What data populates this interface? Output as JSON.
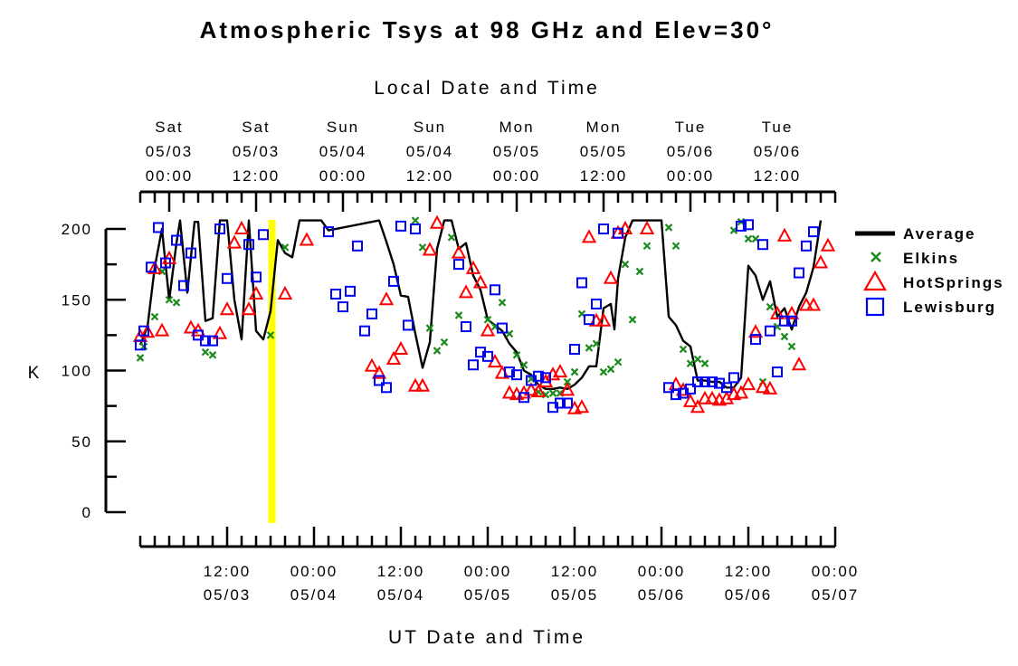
{
  "chart_data": {
    "type": "scatter",
    "title": "Atmospheric Tsys at 98 GHz and Elev=30°",
    "top_axis_label": "Local Date and Time",
    "xlabel": "UT Date and Time",
    "ylabel": "K",
    "ylim": [
      0,
      200
    ],
    "y_ticks": [
      0,
      50,
      100,
      150,
      200
    ],
    "x_range_ut_hours_from_0503_0000": [
      0,
      96
    ],
    "top_ticks": [
      {
        "day": "Sat",
        "date": "05/03",
        "time": "00:00",
        "ut_hours": 4
      },
      {
        "day": "Sat",
        "date": "05/03",
        "time": "12:00",
        "ut_hours": 16
      },
      {
        "day": "Sun",
        "date": "05/04",
        "time": "00:00",
        "ut_hours": 28
      },
      {
        "day": "Sun",
        "date": "05/04",
        "time": "12:00",
        "ut_hours": 40
      },
      {
        "day": "Mon",
        "date": "05/05",
        "time": "00:00",
        "ut_hours": 52
      },
      {
        "day": "Mon",
        "date": "05/05",
        "time": "12:00",
        "ut_hours": 64
      },
      {
        "day": "Tue",
        "date": "05/06",
        "time": "00:00",
        "ut_hours": 76
      },
      {
        "day": "Tue",
        "date": "05/06",
        "time": "12:00",
        "ut_hours": 88
      }
    ],
    "bottom_ticks": [
      {
        "time": "12:00",
        "date": "05/03",
        "ut_hours": 12
      },
      {
        "time": "00:00",
        "date": "05/04",
        "ut_hours": 24
      },
      {
        "time": "12:00",
        "date": "05/04",
        "ut_hours": 36
      },
      {
        "time": "00:00",
        "date": "05/05",
        "ut_hours": 48
      },
      {
        "time": "12:00",
        "date": "05/05",
        "ut_hours": 60
      },
      {
        "time": "00:00",
        "date": "05/06",
        "ut_hours": 72
      },
      {
        "time": "12:00",
        "date": "05/06",
        "ut_hours": 84
      },
      {
        "time": "00:00",
        "date": "05/07",
        "ut_hours": 96
      }
    ],
    "now_marker_ut_hours": 18.2,
    "colors": {
      "average": "#000000",
      "elkins": "#1a8a1a",
      "hotsprings": "#ff0000",
      "lewisburg": "#0000ff",
      "now_marker": "#ffff00"
    },
    "series": [
      {
        "name": "Average",
        "marker": "line",
        "points": [
          [
            0,
            118
          ],
          [
            1,
            131
          ],
          [
            2,
            173
          ],
          [
            3,
            200
          ],
          [
            4,
            150
          ],
          [
            5,
            190
          ],
          [
            5.5,
            206
          ],
          [
            6.5,
            155
          ],
          [
            7.5,
            205
          ],
          [
            8,
            205
          ],
          [
            9,
            135
          ],
          [
            10,
            137
          ],
          [
            11,
            206
          ],
          [
            12,
            206
          ],
          [
            13,
            150
          ],
          [
            14,
            122
          ],
          [
            15,
            206
          ],
          [
            16,
            128
          ],
          [
            17,
            122
          ],
          [
            18,
            142
          ],
          [
            19,
            192
          ],
          [
            20,
            183
          ],
          [
            21,
            180
          ],
          [
            22,
            206
          ],
          [
            23,
            206
          ],
          [
            25,
            206
          ],
          [
            26,
            199
          ],
          [
            33,
            206
          ],
          [
            34,
            191
          ],
          [
            35,
            175
          ],
          [
            36,
            153
          ],
          [
            37,
            152
          ],
          [
            38,
            126
          ],
          [
            39,
            102
          ],
          [
            40,
            120
          ],
          [
            41,
            186
          ],
          [
            42,
            206
          ],
          [
            43,
            206
          ],
          [
            44,
            186
          ],
          [
            45,
            190
          ],
          [
            46,
            167
          ],
          [
            47,
            157
          ],
          [
            48,
            136
          ],
          [
            49,
            132
          ],
          [
            50,
            128
          ],
          [
            51,
            119
          ],
          [
            52,
            113
          ],
          [
            53,
            100
          ],
          [
            54,
            97
          ],
          [
            55,
            90
          ],
          [
            56,
            87
          ],
          [
            57,
            87
          ],
          [
            58,
            88
          ],
          [
            59,
            87
          ],
          [
            60,
            90
          ],
          [
            61,
            95
          ],
          [
            62,
            103
          ],
          [
            63,
            103
          ],
          [
            64,
            144
          ],
          [
            65,
            147
          ],
          [
            65.5,
            129
          ],
          [
            66,
            165
          ],
          [
            67,
            194
          ],
          [
            68,
            206
          ],
          [
            72,
            206
          ],
          [
            73,
            138
          ],
          [
            74,
            132
          ],
          [
            75,
            121
          ],
          [
            76,
            117
          ],
          [
            77,
            93
          ],
          [
            78,
            93
          ],
          [
            79,
            92
          ],
          [
            80,
            92
          ],
          [
            81,
            88
          ],
          [
            82,
            88
          ],
          [
            83,
            95
          ],
          [
            84,
            174
          ],
          [
            85,
            167
          ],
          [
            86,
            150
          ],
          [
            87,
            163
          ],
          [
            88,
            138
          ],
          [
            89,
            144
          ],
          [
            90,
            129
          ],
          [
            91,
            145
          ],
          [
            92,
            155
          ],
          [
            93,
            173
          ],
          [
            94,
            206
          ]
        ]
      },
      {
        "name": "Elkins",
        "marker": "x",
        "points": [
          [
            0,
            109
          ],
          [
            0.5,
            117
          ],
          [
            2,
            138
          ],
          [
            3,
            170
          ],
          [
            4,
            150
          ],
          [
            5,
            148
          ],
          [
            9,
            113
          ],
          [
            10,
            111
          ],
          [
            18,
            125
          ],
          [
            20,
            187
          ],
          [
            38,
            206
          ],
          [
            39,
            187
          ],
          [
            40,
            130
          ],
          [
            41,
            114
          ],
          [
            42,
            120
          ],
          [
            43,
            194
          ],
          [
            44,
            139
          ],
          [
            48,
            136
          ],
          [
            49,
            131
          ],
          [
            50,
            148
          ],
          [
            51,
            126
          ],
          [
            52,
            111
          ],
          [
            53,
            104
          ],
          [
            54,
            94
          ],
          [
            55,
            85
          ],
          [
            56,
            83
          ],
          [
            57,
            84
          ],
          [
            58,
            84
          ],
          [
            59,
            92
          ],
          [
            60,
            99
          ],
          [
            61,
            140
          ],
          [
            62,
            116
          ],
          [
            63,
            119
          ],
          [
            64,
            99
          ],
          [
            65,
            101
          ],
          [
            66,
            106
          ],
          [
            67,
            175
          ],
          [
            68,
            136
          ],
          [
            69,
            170
          ],
          [
            70,
            188
          ],
          [
            73,
            201
          ],
          [
            74,
            188
          ],
          [
            75,
            115
          ],
          [
            76,
            105
          ],
          [
            77,
            108
          ],
          [
            78,
            105
          ],
          [
            82,
            199
          ],
          [
            83,
            205
          ],
          [
            84,
            193
          ],
          [
            85,
            193
          ],
          [
            86,
            92
          ],
          [
            87,
            145
          ],
          [
            88,
            131
          ],
          [
            89,
            124
          ],
          [
            90,
            117
          ]
        ]
      },
      {
        "name": "HotSprings",
        "marker": "triangle",
        "points": [
          [
            0,
            124
          ],
          [
            1,
            127
          ],
          [
            2,
            172
          ],
          [
            3,
            128
          ],
          [
            4,
            179
          ],
          [
            7,
            130
          ],
          [
            8,
            128
          ],
          [
            11,
            126
          ],
          [
            12,
            143
          ],
          [
            13,
            190
          ],
          [
            14,
            200
          ],
          [
            15,
            143
          ],
          [
            16,
            154
          ],
          [
            20,
            154
          ],
          [
            23,
            192
          ],
          [
            32,
            103
          ],
          [
            33,
            98
          ],
          [
            34,
            150
          ],
          [
            35,
            108
          ],
          [
            36,
            115
          ],
          [
            38,
            89
          ],
          [
            39,
            89
          ],
          [
            40,
            185
          ],
          [
            41,
            204
          ],
          [
            44,
            183
          ],
          [
            45,
            155
          ],
          [
            46,
            172
          ],
          [
            47,
            162
          ],
          [
            48,
            128
          ],
          [
            49,
            106
          ],
          [
            50,
            98
          ],
          [
            51,
            84
          ],
          [
            52,
            83
          ],
          [
            53,
            84
          ],
          [
            54,
            86
          ],
          [
            55,
            85
          ],
          [
            56,
            92
          ],
          [
            57,
            97
          ],
          [
            58,
            99
          ],
          [
            59,
            86
          ],
          [
            60,
            73
          ],
          [
            61,
            74
          ],
          [
            62,
            194
          ],
          [
            63,
            135
          ],
          [
            64,
            135
          ],
          [
            65,
            165
          ],
          [
            66,
            197
          ],
          [
            67,
            200
          ],
          [
            70,
            200
          ],
          [
            74,
            90
          ],
          [
            75,
            86
          ],
          [
            76,
            78
          ],
          [
            77,
            74
          ],
          [
            78,
            80
          ],
          [
            79,
            80
          ],
          [
            80,
            79
          ],
          [
            81,
            80
          ],
          [
            82,
            83
          ],
          [
            83,
            84
          ],
          [
            84,
            90
          ],
          [
            85,
            127
          ],
          [
            86,
            88
          ],
          [
            87,
            87
          ],
          [
            88,
            140
          ],
          [
            89,
            195
          ],
          [
            90,
            140
          ],
          [
            91,
            104
          ],
          [
            92,
            146
          ],
          [
            93,
            146
          ],
          [
            94,
            176
          ],
          [
            95,
            188
          ]
        ]
      },
      {
        "name": "Lewisburg",
        "marker": "square",
        "points": [
          [
            0,
            118
          ],
          [
            0.5,
            128
          ],
          [
            1.5,
            173
          ],
          [
            2.5,
            201
          ],
          [
            3.5,
            176
          ],
          [
            5,
            192
          ],
          [
            6,
            160
          ],
          [
            7,
            183
          ],
          [
            8,
            125
          ],
          [
            9,
            121
          ],
          [
            10,
            121
          ],
          [
            11,
            200
          ],
          [
            12,
            165
          ],
          [
            15,
            189
          ],
          [
            16,
            166
          ],
          [
            17,
            196
          ],
          [
            26,
            198
          ],
          [
            27,
            154
          ],
          [
            28,
            145
          ],
          [
            29,
            156
          ],
          [
            30,
            188
          ],
          [
            31,
            128
          ],
          [
            32,
            140
          ],
          [
            33,
            93
          ],
          [
            34,
            88
          ],
          [
            35,
            163
          ],
          [
            36,
            202
          ],
          [
            37,
            132
          ],
          [
            38,
            200
          ],
          [
            44,
            175
          ],
          [
            45,
            131
          ],
          [
            46,
            104
          ],
          [
            47,
            113
          ],
          [
            48,
            110
          ],
          [
            49,
            157
          ],
          [
            50,
            130
          ],
          [
            51,
            99
          ],
          [
            52,
            97
          ],
          [
            53,
            81
          ],
          [
            54,
            93
          ],
          [
            55,
            96
          ],
          [
            56,
            95
          ],
          [
            57,
            74
          ],
          [
            58,
            77
          ],
          [
            59,
            77
          ],
          [
            60,
            115
          ],
          [
            61,
            162
          ],
          [
            62,
            136
          ],
          [
            63,
            147
          ],
          [
            64,
            200
          ],
          [
            66,
            197
          ],
          [
            73,
            88
          ],
          [
            74,
            83
          ],
          [
            75,
            84
          ],
          [
            76,
            87
          ],
          [
            77,
            92
          ],
          [
            78,
            92
          ],
          [
            79,
            92
          ],
          [
            80,
            91
          ],
          [
            81,
            88
          ],
          [
            82,
            95
          ],
          [
            83,
            202
          ],
          [
            84,
            203
          ],
          [
            85,
            122
          ],
          [
            86,
            189
          ],
          [
            87,
            128
          ],
          [
            88,
            99
          ],
          [
            89,
            135
          ],
          [
            90,
            135
          ],
          [
            91,
            169
          ],
          [
            92,
            188
          ],
          [
            93,
            198
          ]
        ]
      }
    ]
  }
}
